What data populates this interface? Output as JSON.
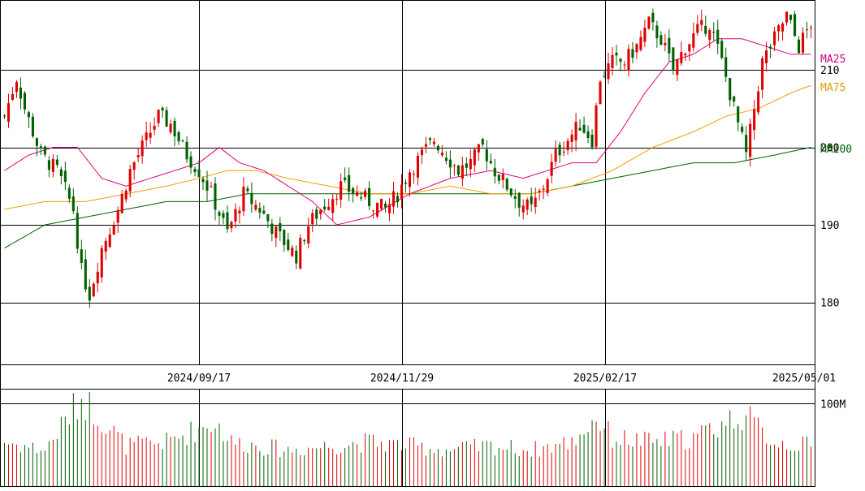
{
  "chart_data": {
    "type": "candlestick",
    "price_axis": {
      "ylim": [
        172,
        219
      ],
      "ticks": [
        180,
        190,
        200,
        210
      ],
      "tick_labels": [
        "180",
        "190",
        "200",
        "210"
      ]
    },
    "volume_axis": {
      "ylim": [
        0,
        117
      ],
      "ticks": [
        100
      ],
      "tick_labels": [
        "100M"
      ]
    },
    "date_ticks": [
      "2024/09/17",
      "2024/11/29",
      "2025/02/17",
      "2025/05/01"
    ],
    "legend": {
      "ma25": "MA25",
      "ma75": "MA75",
      "ma200": "MA200"
    },
    "colors": {
      "up": "#e00000",
      "down": "#006000",
      "ma25": "#e0007a",
      "ma75": "#f0a000",
      "ma200": "#006000",
      "grid": "#000000",
      "legend_ma25": "#cc0088",
      "legend_ma75": "#e0a000",
      "legend_ma200": "#006000"
    },
    "candle_keyframes": [
      {
        "i": 0,
        "close": 204
      },
      {
        "i": 3,
        "close": 209
      },
      {
        "i": 5,
        "close": 205
      },
      {
        "i": 9,
        "close": 199
      },
      {
        "i": 13,
        "close": 197
      },
      {
        "i": 17,
        "close": 192
      },
      {
        "i": 19,
        "close": 184
      },
      {
        "i": 21,
        "close": 181
      },
      {
        "i": 24,
        "close": 187
      },
      {
        "i": 28,
        "close": 192
      },
      {
        "i": 31,
        "close": 197
      },
      {
        "i": 35,
        "close": 201
      },
      {
        "i": 38,
        "close": 204
      },
      {
        "i": 41,
        "close": 203
      },
      {
        "i": 45,
        "close": 199
      },
      {
        "i": 48,
        "close": 197
      },
      {
        "i": 51,
        "close": 194
      },
      {
        "i": 55,
        "close": 189
      },
      {
        "i": 59,
        "close": 194
      },
      {
        "i": 63,
        "close": 192
      },
      {
        "i": 67,
        "close": 189
      },
      {
        "i": 72,
        "close": 186
      },
      {
        "i": 75,
        "close": 190
      },
      {
        "i": 78,
        "close": 192
      },
      {
        "i": 83,
        "close": 195
      },
      {
        "i": 87,
        "close": 194
      },
      {
        "i": 90,
        "close": 193
      },
      {
        "i": 94,
        "close": 192
      },
      {
        "i": 97,
        "close": 194
      },
      {
        "i": 100,
        "close": 197
      },
      {
        "i": 103,
        "close": 199
      },
      {
        "i": 106,
        "close": 201
      },
      {
        "i": 109,
        "close": 199
      },
      {
        "i": 112,
        "close": 197
      },
      {
        "i": 115,
        "close": 198
      },
      {
        "i": 118,
        "close": 200
      },
      {
        "i": 121,
        "close": 197
      },
      {
        "i": 124,
        "close": 195
      },
      {
        "i": 127,
        "close": 193
      },
      {
        "i": 130,
        "close": 192
      },
      {
        "i": 133,
        "close": 195
      },
      {
        "i": 136,
        "close": 199
      },
      {
        "i": 139,
        "close": 201
      },
      {
        "i": 142,
        "close": 203
      },
      {
        "i": 145,
        "close": 201
      },
      {
        "i": 147,
        "close": 209
      },
      {
        "i": 150,
        "close": 211
      },
      {
        "i": 153,
        "close": 211
      },
      {
        "i": 156,
        "close": 213
      },
      {
        "i": 159,
        "close": 216
      },
      {
        "i": 162,
        "close": 214
      },
      {
        "i": 165,
        "close": 210
      },
      {
        "i": 168,
        "close": 213
      },
      {
        "i": 171,
        "close": 215
      },
      {
        "i": 174,
        "close": 216
      },
      {
        "i": 177,
        "close": 211
      },
      {
        "i": 179,
        "close": 207
      },
      {
        "i": 181,
        "close": 203
      },
      {
        "i": 183,
        "close": 199
      },
      {
        "i": 185,
        "close": 205
      },
      {
        "i": 187,
        "close": 211
      },
      {
        "i": 190,
        "close": 214
      },
      {
        "i": 193,
        "close": 217
      },
      {
        "i": 196,
        "close": 213
      },
      {
        "i": 199,
        "close": 216
      }
    ],
    "ma25_keyframes": [
      {
        "i": 0,
        "v": 197
      },
      {
        "i": 6,
        "v": 199
      },
      {
        "i": 12,
        "v": 200
      },
      {
        "i": 18,
        "v": 200
      },
      {
        "i": 24,
        "v": 196
      },
      {
        "i": 30,
        "v": 195
      },
      {
        "i": 36,
        "v": 196
      },
      {
        "i": 42,
        "v": 197
      },
      {
        "i": 48,
        "v": 198
      },
      {
        "i": 53,
        "v": 200
      },
      {
        "i": 58,
        "v": 198
      },
      {
        "i": 64,
        "v": 197
      },
      {
        "i": 70,
        "v": 195
      },
      {
        "i": 76,
        "v": 193
      },
      {
        "i": 82,
        "v": 190
      },
      {
        "i": 90,
        "v": 191
      },
      {
        "i": 100,
        "v": 194
      },
      {
        "i": 110,
        "v": 196
      },
      {
        "i": 120,
        "v": 197
      },
      {
        "i": 128,
        "v": 196
      },
      {
        "i": 134,
        "v": 197
      },
      {
        "i": 140,
        "v": 198
      },
      {
        "i": 146,
        "v": 198
      },
      {
        "i": 152,
        "v": 202
      },
      {
        "i": 158,
        "v": 207
      },
      {
        "i": 164,
        "v": 211
      },
      {
        "i": 170,
        "v": 212
      },
      {
        "i": 176,
        "v": 214
      },
      {
        "i": 182,
        "v": 214
      },
      {
        "i": 188,
        "v": 213
      },
      {
        "i": 194,
        "v": 212
      },
      {
        "i": 199,
        "v": 212
      }
    ],
    "ma75_keyframes": [
      {
        "i": 0,
        "v": 192
      },
      {
        "i": 10,
        "v": 193
      },
      {
        "i": 20,
        "v": 193
      },
      {
        "i": 30,
        "v": 194
      },
      {
        "i": 40,
        "v": 195
      },
      {
        "i": 48,
        "v": 196
      },
      {
        "i": 55,
        "v": 197
      },
      {
        "i": 62,
        "v": 197
      },
      {
        "i": 70,
        "v": 196
      },
      {
        "i": 80,
        "v": 195
      },
      {
        "i": 90,
        "v": 194
      },
      {
        "i": 100,
        "v": 194
      },
      {
        "i": 110,
        "v": 195
      },
      {
        "i": 120,
        "v": 194
      },
      {
        "i": 130,
        "v": 194
      },
      {
        "i": 140,
        "v": 195
      },
      {
        "i": 150,
        "v": 197
      },
      {
        "i": 160,
        "v": 200
      },
      {
        "i": 170,
        "v": 202
      },
      {
        "i": 178,
        "v": 204
      },
      {
        "i": 186,
        "v": 205
      },
      {
        "i": 194,
        "v": 207
      },
      {
        "i": 199,
        "v": 208
      }
    ],
    "ma200_keyframes": [
      {
        "i": 0,
        "v": 187
      },
      {
        "i": 10,
        "v": 190
      },
      {
        "i": 20,
        "v": 191
      },
      {
        "i": 30,
        "v": 192
      },
      {
        "i": 40,
        "v": 193
      },
      {
        "i": 50,
        "v": 193
      },
      {
        "i": 60,
        "v": 194
      },
      {
        "i": 70,
        "v": 194
      },
      {
        "i": 80,
        "v": 194
      },
      {
        "i": 90,
        "v": 194
      },
      {
        "i": 100,
        "v": 194
      },
      {
        "i": 110,
        "v": 194
      },
      {
        "i": 120,
        "v": 194
      },
      {
        "i": 130,
        "v": 194
      },
      {
        "i": 140,
        "v": 195
      },
      {
        "i": 150,
        "v": 196
      },
      {
        "i": 160,
        "v": 197
      },
      {
        "i": 170,
        "v": 198
      },
      {
        "i": 180,
        "v": 198
      },
      {
        "i": 190,
        "v": 199
      },
      {
        "i": 199,
        "v": 200
      }
    ],
    "volume_keyframes": [
      {
        "i": 0,
        "v": 55
      },
      {
        "i": 10,
        "v": 45
      },
      {
        "i": 19,
        "v": 110
      },
      {
        "i": 22,
        "v": 95
      },
      {
        "i": 30,
        "v": 50
      },
      {
        "i": 40,
        "v": 55
      },
      {
        "i": 52,
        "v": 80
      },
      {
        "i": 56,
        "v": 55
      },
      {
        "i": 70,
        "v": 45
      },
      {
        "i": 80,
        "v": 50
      },
      {
        "i": 90,
        "v": 55
      },
      {
        "i": 100,
        "v": 50
      },
      {
        "i": 110,
        "v": 45
      },
      {
        "i": 120,
        "v": 50
      },
      {
        "i": 130,
        "v": 45
      },
      {
        "i": 140,
        "v": 55
      },
      {
        "i": 146,
        "v": 85
      },
      {
        "i": 150,
        "v": 60
      },
      {
        "i": 160,
        "v": 55
      },
      {
        "i": 170,
        "v": 60
      },
      {
        "i": 176,
        "v": 75
      },
      {
        "i": 182,
        "v": 90
      },
      {
        "i": 190,
        "v": 55
      },
      {
        "i": 199,
        "v": 50
      }
    ]
  }
}
